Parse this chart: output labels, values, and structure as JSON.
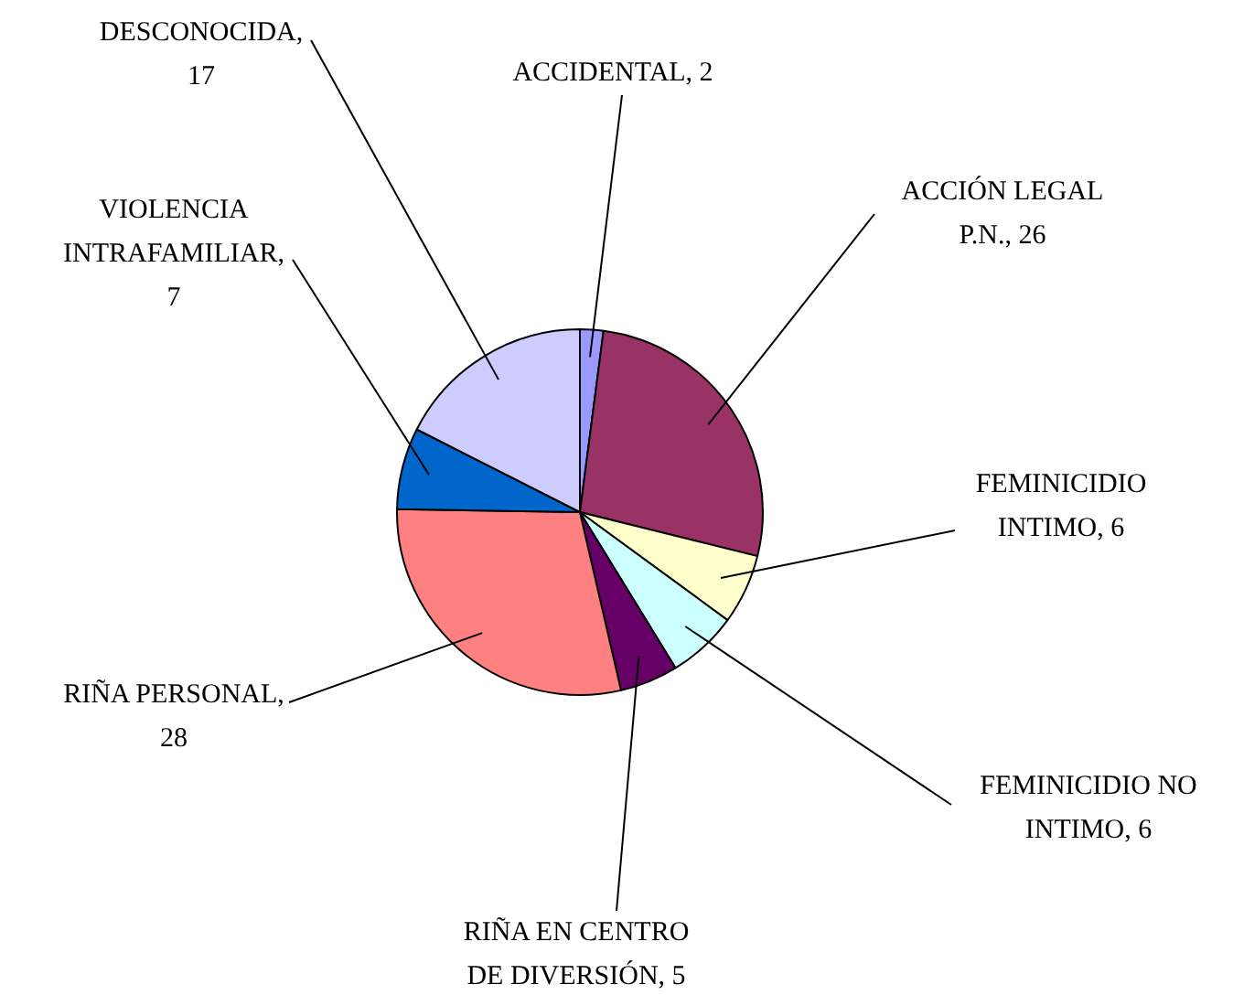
{
  "chart_data": {
    "type": "pie",
    "categories": [
      "ACCIDENTAL, 2",
      "ACCIÓN LEGAL P.N., 26",
      "FEMINICIDIO INTIMO, 6",
      "FEMINICIDIO NO INTIMO, 6",
      "RIÑA EN CENTRO DE DIVERSIÓN, 5",
      "RIÑA PERSONAL, 28",
      "VIOLENCIA INTRAFAMILIAR, 7",
      "DESCONOCIDA, 17"
    ],
    "values": [
      2,
      26,
      6,
      6,
      5,
      28,
      7,
      17
    ],
    "colors": [
      "#9999ff",
      "#993366",
      "#ffffcc",
      "#ccffff",
      "#660066",
      "#ff8080",
      "#0066cc",
      "#ccccff"
    ],
    "legend": false
  }
}
